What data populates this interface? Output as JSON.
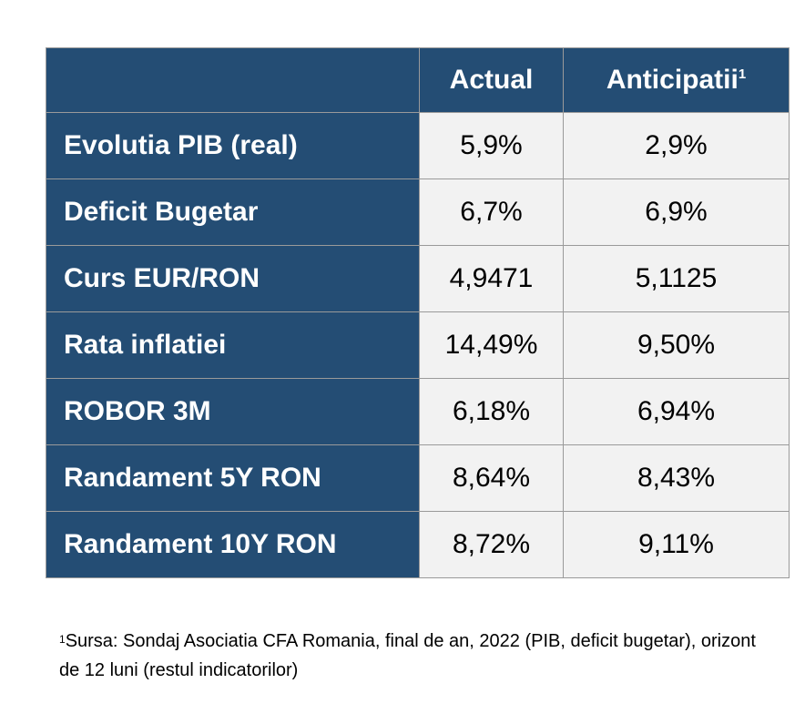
{
  "table": {
    "headers": {
      "actual": "Actual",
      "anticipatii": "Anticipatii",
      "anticipatii_sup": "1"
    },
    "rows": [
      {
        "label": "Evolutia PIB (real)",
        "actual": "5,9%",
        "anticipatii": "2,9%"
      },
      {
        "label": "Deficit Bugetar",
        "actual": "6,7%",
        "anticipatii": "6,9%"
      },
      {
        "label": "Curs EUR/RON",
        "actual": "4,9471",
        "anticipatii": "5,1125"
      },
      {
        "label": "Rata inflatiei",
        "actual": "14,49%",
        "anticipatii": "9,50%"
      },
      {
        "label": "ROBOR 3M",
        "actual": "6,18%",
        "anticipatii": "6,94%"
      },
      {
        "label": "Randament 5Y RON",
        "actual": "8,64%",
        "anticipatii": "8,43%"
      },
      {
        "label": "Randament 10Y RON",
        "actual": "8,72%",
        "anticipatii": "9,11%"
      }
    ]
  },
  "footnote": {
    "marker": "1",
    "text": "Sursa: Sondaj Asociatia CFA Romania, final de an, 2022 (PIB, deficit bugetar), orizont de 12 luni (restul indicatorilor)"
  },
  "colors": {
    "header_bg": "#244d74",
    "value_bg": "#f2f2f2",
    "border": "#9a9a9a"
  }
}
